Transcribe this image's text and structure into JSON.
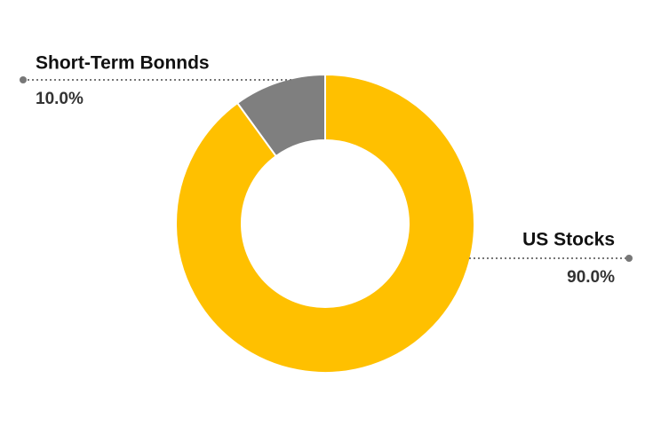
{
  "chart_data": {
    "type": "donut",
    "categories": [
      "US Stocks",
      "Short-Term Bonnds"
    ],
    "values": [
      90,
      10
    ],
    "value_labels": [
      "90.0%",
      "10.0%"
    ],
    "colors": [
      "#ffc000",
      "#7f7f7f"
    ]
  }
}
